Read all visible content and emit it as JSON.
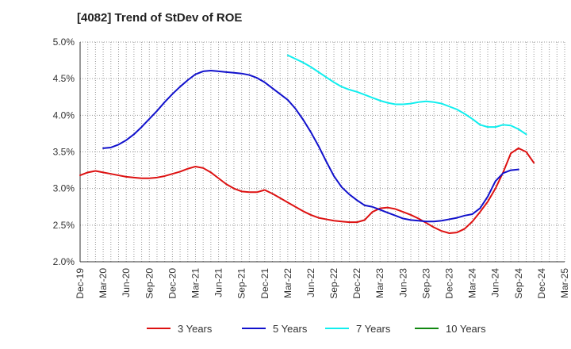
{
  "chart_data": {
    "type": "line",
    "title": "[4082]  Trend of StDev of ROE",
    "xlabel": "",
    "ylabel": "",
    "ylim": [
      0.02,
      0.05
    ],
    "yticks": [
      0.02,
      0.025,
      0.03,
      0.035,
      0.04,
      0.045,
      0.05
    ],
    "ytick_labels": [
      "2.0%",
      "2.5%",
      "3.0%",
      "3.5%",
      "4.0%",
      "4.5%",
      "5.0%"
    ],
    "xtick_labels": [
      "Dec-19",
      "Mar-20",
      "Jun-20",
      "Sep-20",
      "Dec-20",
      "Mar-21",
      "Jun-21",
      "Sep-21",
      "Dec-21",
      "Mar-22",
      "Jun-22",
      "Sep-22",
      "Dec-22",
      "Mar-23",
      "Jun-23",
      "Sep-23",
      "Dec-23",
      "Mar-24",
      "Jun-24",
      "Sep-24",
      "Dec-24",
      "Mar-25"
    ],
    "grid": true,
    "legend_position": "bottom",
    "series": [
      {
        "name": "3 Years",
        "color": "#dd1111",
        "start_index": 0,
        "values": [
          0.0318,
          0.0322,
          0.0324,
          0.0322,
          0.032,
          0.0318,
          0.0316,
          0.0315,
          0.0314,
          0.0314,
          0.0315,
          0.0317,
          0.032,
          0.0323,
          0.0327,
          0.033,
          0.0328,
          0.0322,
          0.0314,
          0.0306,
          0.03,
          0.0296,
          0.0295,
          0.0295,
          0.0298,
          0.0293,
          0.0287,
          0.0281,
          0.0275,
          0.0269,
          0.0264,
          0.026,
          0.0258,
          0.0256,
          0.0255,
          0.0254,
          0.0254,
          0.0257,
          0.0268,
          0.0273,
          0.0274,
          0.0272,
          0.0268,
          0.0264,
          0.0259,
          0.0253,
          0.0247,
          0.0242,
          0.0239,
          0.024,
          0.0245,
          0.0255,
          0.0268,
          0.0282,
          0.03,
          0.0322,
          0.0348,
          0.0355,
          0.035,
          0.0335
        ]
      },
      {
        "name": "5 Years",
        "color": "#1111cc",
        "start_index": 3,
        "values": [
          0.0355,
          0.0356,
          0.036,
          0.0366,
          0.0374,
          0.0384,
          0.0395,
          0.0406,
          0.0418,
          0.0429,
          0.0439,
          0.0448,
          0.0456,
          0.046,
          0.0461,
          0.046,
          0.0459,
          0.0458,
          0.0457,
          0.0455,
          0.0451,
          0.0445,
          0.0437,
          0.0429,
          0.0421,
          0.0409,
          0.0394,
          0.0377,
          0.0358,
          0.0337,
          0.0317,
          0.0302,
          0.0292,
          0.0284,
          0.0277,
          0.0275,
          0.0271,
          0.0267,
          0.0263,
          0.0259,
          0.0257,
          0.0256,
          0.0255,
          0.0255,
          0.0256,
          0.0258,
          0.026,
          0.0263,
          0.0265,
          0.0273,
          0.0289,
          0.031,
          0.0321,
          0.0325,
          0.0326
        ]
      },
      {
        "name": "7 Years",
        "color": "#11eeee",
        "start_index": 27,
        "values": [
          0.0482,
          0.0477,
          0.0472,
          0.0466,
          0.0459,
          0.0452,
          0.0445,
          0.0439,
          0.0435,
          0.0432,
          0.0428,
          0.0424,
          0.042,
          0.0417,
          0.0415,
          0.0415,
          0.0416,
          0.0418,
          0.0419,
          0.0418,
          0.0416,
          0.0412,
          0.0408,
          0.0402,
          0.0395,
          0.0387,
          0.0384,
          0.0384,
          0.0387,
          0.0386,
          0.0381,
          0.0374
        ]
      },
      {
        "name": "10 Years",
        "color": "#118811",
        "start_index": 0,
        "values": []
      }
    ]
  }
}
